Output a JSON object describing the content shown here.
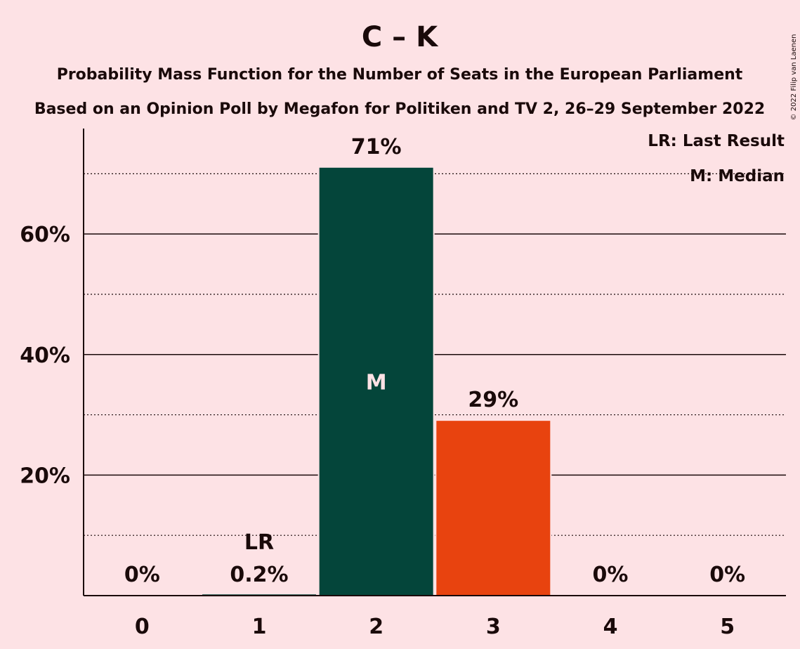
{
  "chart_data": {
    "type": "bar",
    "title": "C – K",
    "subtitle_lines": [
      "Probability Mass Function for the Number of Seats in the European Parliament",
      "Based on an Opinion Poll by Megafon for Politiken and TV 2, 26–29 September 2022"
    ],
    "categories": [
      "0",
      "1",
      "2",
      "3",
      "4",
      "5"
    ],
    "values": [
      0,
      0.2,
      71,
      29,
      0,
      0
    ],
    "value_labels": [
      "0%",
      "0.2%",
      "71%",
      "29%",
      "0%",
      "0%"
    ],
    "bar_colors": [
      "#04453A",
      "#04453A",
      "#04453A",
      "#E8430F",
      "#E8430F",
      "#E8430F"
    ],
    "ylim": [
      0,
      77.5
    ],
    "yticks_major": [
      20,
      40,
      60
    ],
    "ytick_labels": [
      "20%",
      "40%",
      "60%"
    ],
    "yticks_minor": [
      10,
      30,
      50,
      70
    ],
    "last_result_category": "1",
    "last_result_label": "LR",
    "median_category": "2",
    "median_label": "M",
    "legend": {
      "position": "top-right",
      "entries": [
        "LR: Last Result",
        "M: Median"
      ]
    },
    "copyright": "© 2022 Filip van Laenen"
  }
}
